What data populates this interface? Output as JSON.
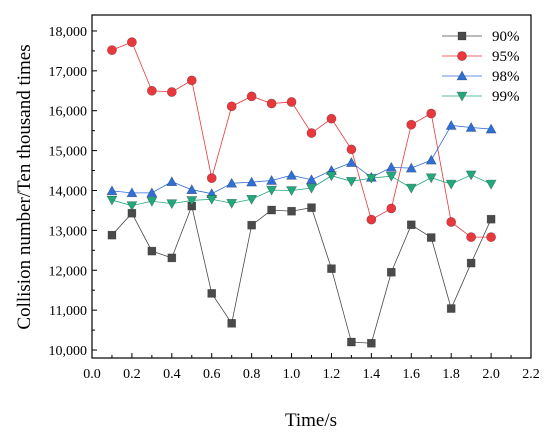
{
  "chart_data": {
    "type": "line",
    "title": "",
    "xlabel": "Time/s",
    "ylabel": "Collision number/Ten thousand times",
    "xlim": [
      0.0,
      2.2
    ],
    "ylim": [
      9800,
      18400
    ],
    "x_ticks": [
      0.0,
      0.2,
      0.4,
      0.6,
      0.8,
      1.0,
      1.2,
      1.4,
      1.6,
      1.8,
      2.0,
      2.2
    ],
    "x_tick_labels": [
      "0.0",
      "0.2",
      "0.4",
      "0.6",
      "0.8",
      "1.0",
      "1.2",
      "1.4",
      "1.6",
      "1.8",
      "2.0",
      "2.2"
    ],
    "y_ticks": [
      10000,
      11000,
      12000,
      13000,
      14000,
      15000,
      16000,
      17000,
      18000
    ],
    "y_tick_labels": [
      "10,000",
      "11,000",
      "12,000",
      "13,000",
      "14,000",
      "15,000",
      "16,000",
      "17,000",
      "18,000"
    ],
    "grid": false,
    "legend_position": "top-right",
    "x": [
      0.1,
      0.2,
      0.3,
      0.4,
      0.5,
      0.6,
      0.7,
      0.8,
      0.9,
      1.0,
      1.1,
      1.2,
      1.3,
      1.4,
      1.5,
      1.6,
      1.7,
      1.8,
      1.9,
      2.0
    ],
    "series": [
      {
        "name": "90%",
        "color": "#4a4a4a",
        "marker": "square",
        "values": [
          12880,
          13430,
          12480,
          12310,
          13610,
          11420,
          10670,
          13130,
          13510,
          13480,
          13570,
          12040,
          10200,
          10170,
          11950,
          13140,
          12820,
          11040,
          12180,
          13280
        ]
      },
      {
        "name": "95%",
        "color": "#e8383d",
        "marker": "circle",
        "values": [
          17520,
          17720,
          16500,
          16470,
          16760,
          14310,
          16110,
          16360,
          16180,
          16220,
          15440,
          15800,
          15030,
          13270,
          13550,
          15650,
          15930,
          13210,
          12830,
          12830
        ]
      },
      {
        "name": "98%",
        "color": "#2f6fd6",
        "marker": "triangle-up",
        "values": [
          13990,
          13940,
          13940,
          14220,
          14020,
          13920,
          14180,
          14210,
          14250,
          14380,
          14270,
          14500,
          14700,
          14330,
          14580,
          14560,
          14760,
          15630,
          15580,
          15540
        ]
      },
      {
        "name": "99%",
        "color": "#22a87a",
        "marker": "triangle-down",
        "values": [
          13760,
          13620,
          13730,
          13670,
          13750,
          13780,
          13680,
          13780,
          14010,
          14000,
          14060,
          14370,
          14230,
          14310,
          14360,
          14060,
          14320,
          14160,
          14390,
          14160
        ]
      }
    ]
  }
}
